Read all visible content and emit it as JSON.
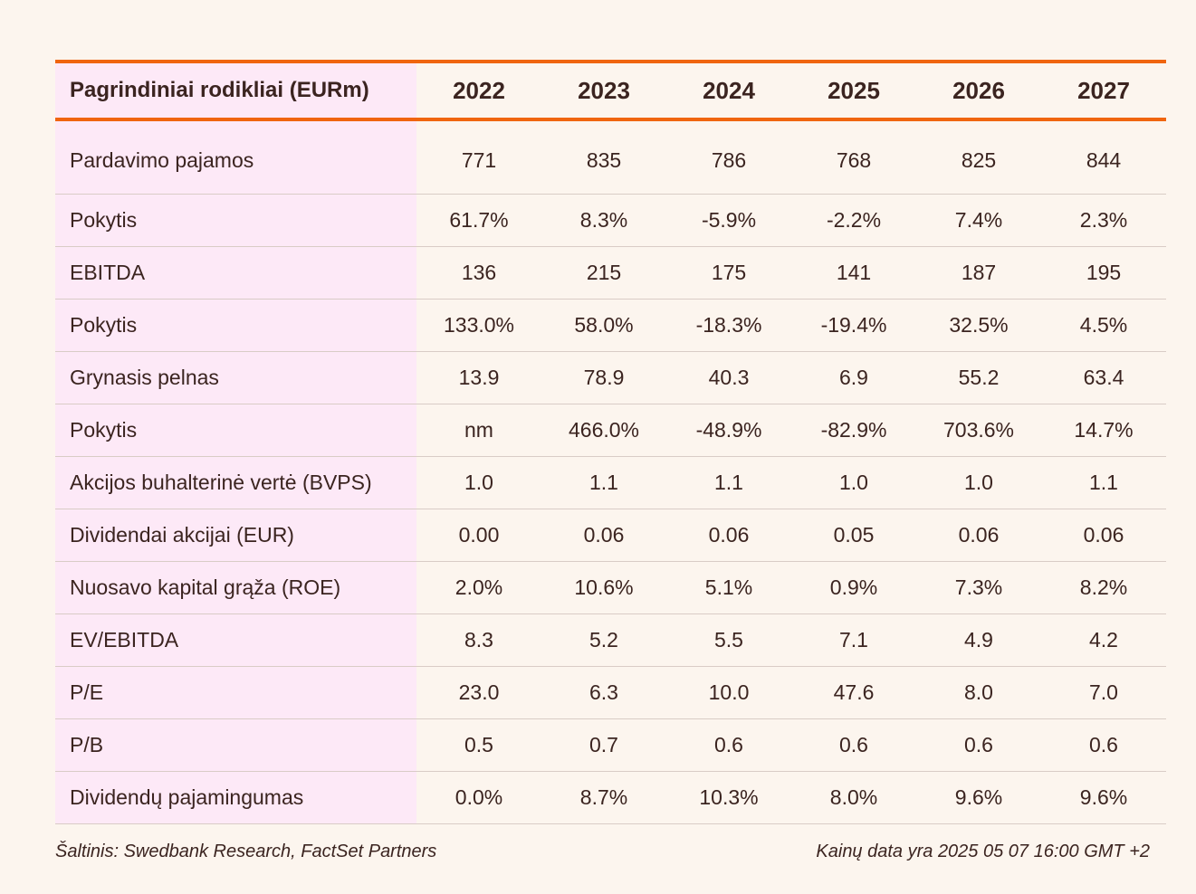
{
  "chart_data": {
    "type": "table",
    "columns": [
      "Pagrindiniai rodikliai (EURm)",
      "2022",
      "2023",
      "2024",
      "2025",
      "2026",
      "2027"
    ],
    "rows": [
      {
        "label": "Pardavimo pajamos",
        "values": [
          "771",
          "835",
          "786",
          "768",
          "825",
          "844"
        ]
      },
      {
        "label": "Pokytis",
        "values": [
          "61.7%",
          "8.3%",
          "-5.9%",
          "-2.2%",
          "7.4%",
          "2.3%"
        ]
      },
      {
        "label": "EBITDA",
        "values": [
          "136",
          "215",
          "175",
          "141",
          "187",
          "195"
        ]
      },
      {
        "label": "Pokytis",
        "values": [
          "133.0%",
          "58.0%",
          "-18.3%",
          "-19.4%",
          "32.5%",
          "4.5%"
        ]
      },
      {
        "label": "Grynasis pelnas",
        "values": [
          "13.9",
          "78.9",
          "40.3",
          "6.9",
          "55.2",
          "63.4"
        ]
      },
      {
        "label": "Pokytis",
        "values": [
          "nm",
          "466.0%",
          "-48.9%",
          "-82.9%",
          "703.6%",
          "14.7%"
        ]
      },
      {
        "label": "Akcijos buhalterinė vertė (BVPS)",
        "values": [
          "1.0",
          "1.1",
          "1.1",
          "1.0",
          "1.0",
          "1.1"
        ]
      },
      {
        "label": "Dividendai akcijai (EUR)",
        "values": [
          "0.00",
          "0.06",
          "0.06",
          "0.05",
          "0.06",
          "0.06"
        ]
      },
      {
        "label": "Nuosavo kapital grąža (ROE)",
        "values": [
          "2.0%",
          "10.6%",
          "5.1%",
          "0.9%",
          "7.3%",
          "8.2%"
        ]
      },
      {
        "label": "EV/EBITDA",
        "values": [
          "8.3",
          "5.2",
          "5.5",
          "7.1",
          "4.9",
          "4.2"
        ]
      },
      {
        "label": "P/E",
        "values": [
          "23.0",
          "6.3",
          "10.0",
          "47.6",
          "8.0",
          "7.0"
        ]
      },
      {
        "label": "P/B",
        "values": [
          "0.5",
          "0.7",
          "0.6",
          "0.6",
          "0.6",
          "0.6"
        ]
      },
      {
        "label": "Dividendų pajamingumas",
        "values": [
          "0.0%",
          "8.7%",
          "10.3%",
          "8.0%",
          "9.6%",
          "9.6%"
        ]
      }
    ]
  },
  "footer": {
    "source": "Šaltinis: Swedbank Research, FactSet Partners",
    "price_date": "Kainų data yra 2025 05 07 16:00 GMT +2"
  },
  "colors": {
    "accent_rule": "#f0650f",
    "label_column_bg": "#fde9f7",
    "page_bg": "#fcf5ee"
  }
}
